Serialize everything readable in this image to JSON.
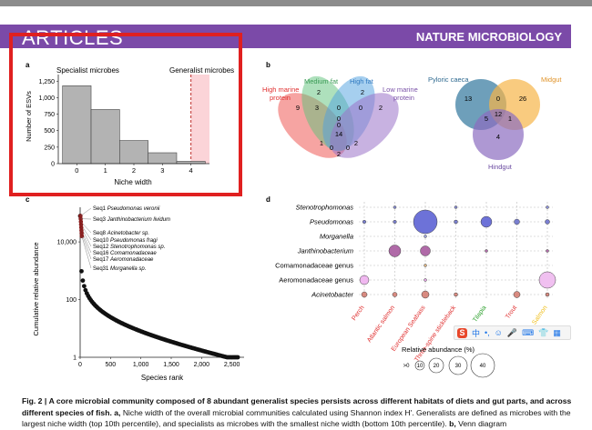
{
  "header": {
    "section": "ARTICLES",
    "journal": "NATURE MICROBIOLOGY"
  },
  "panel_a": {
    "letter": "a",
    "specialist_label": "Specialist microbes",
    "generalist_label": "Generalist microbes",
    "chart_data": {
      "type": "bar",
      "categories": [
        "0",
        "1",
        "2",
        "3",
        "4"
      ],
      "values": [
        1180,
        820,
        350,
        165,
        35
      ],
      "xlabel": "Niche width",
      "ylabel": "Number of ESVs",
      "yticks": [
        "0",
        "250",
        "500",
        "750",
        "1,000",
        "1,250"
      ],
      "ylim": [
        0,
        1350
      ],
      "generalist_threshold": 4.0
    }
  },
  "panel_b": {
    "letter": "b",
    "venn1": {
      "labels": {
        "hmp": "High marine protein",
        "mf": "Medium fat",
        "hf": "High fat",
        "lmp": "Low marine protein"
      },
      "counts": [
        "9",
        "3",
        "2",
        "0",
        "2",
        "0",
        "0",
        "2",
        "14",
        "1",
        "0",
        "2",
        "0",
        "2",
        "0"
      ]
    },
    "venn2": {
      "labels": {
        "pc": "Pyloric caeca",
        "mg": "Midgut",
        "hg": "Hindgut"
      },
      "counts": [
        "13",
        "0",
        "26",
        "5",
        "12",
        "1",
        "4"
      ]
    }
  },
  "panel_c": {
    "letter": "c",
    "chart_data": {
      "type": "scatter",
      "ylabel": "Cumulative relative abundance",
      "xlabel": "Species rank",
      "xticks": [
        "0",
        "500",
        "1,000",
        "1,500",
        "2,000",
        "2,500"
      ],
      "yticks": [
        "1",
        "100",
        "10,000"
      ],
      "xlim": [
        0,
        2700
      ],
      "ylim_log10": [
        0,
        5.2
      ],
      "annotations": [
        {
          "id": "Seq1",
          "name": "Pseudomonas veronii"
        },
        {
          "id": "Seq3",
          "name": "Janthinobacterium lividum"
        },
        {
          "id": "Seq8",
          "name": "Acinetobacter sp."
        },
        {
          "id": "Seq10",
          "name": "Pseudomonas fragi"
        },
        {
          "id": "Seq12",
          "name": "Stenotrophomonas sp."
        },
        {
          "id": "Seq16",
          "name": "Comamonadaceae"
        },
        {
          "id": "Seq17",
          "name": "Aeromonadaceae"
        },
        {
          "id": "Seq31",
          "name": "Morganella sp."
        }
      ]
    }
  },
  "panel_d": {
    "letter": "d",
    "taxa": [
      "Stenotrophomonas",
      "Pseudomonas",
      "Morganella",
      "Janthinobacterium",
      "Comamonadaceae genus",
      "Aeromonadaceae genus",
      "Acinetobacter"
    ],
    "fish": [
      {
        "name": "Perch",
        "color": "#e03030"
      },
      {
        "name": "Atlantic salmon",
        "color": "#e03030"
      },
      {
        "name": "European Seabass",
        "color": "#e03030"
      },
      {
        "name": "Three-spine stickleback",
        "color": "#e03030"
      },
      {
        "name": "Tilapia",
        "color": "#2ca02c"
      },
      {
        "name": "Trout",
        "color": "#e03030"
      },
      {
        "name": "Salmon",
        "color": "#f0c020"
      }
    ],
    "legend_title": "Relative abundance (%)",
    "legend_sizes": [
      ">0",
      "10",
      "20",
      "30",
      "40"
    ]
  },
  "caption": {
    "label": "Fig. 2 |",
    "bold": "A core microbial community composed of 8 abundant generalist species persists across different habitats of diets and gut parts, and across different species of fish.",
    "panel_a_tag": "a,",
    "text_a": "Niche width of the overall microbial communities calculated using Shannon index H'. Generalists are defined as microbes with the largest niche width (top 10th percentile), and specialists as microbes with the smallest niche width (bottom 10th percentile).",
    "panel_b_tag": "b,",
    "text_b": "Venn diagram"
  }
}
